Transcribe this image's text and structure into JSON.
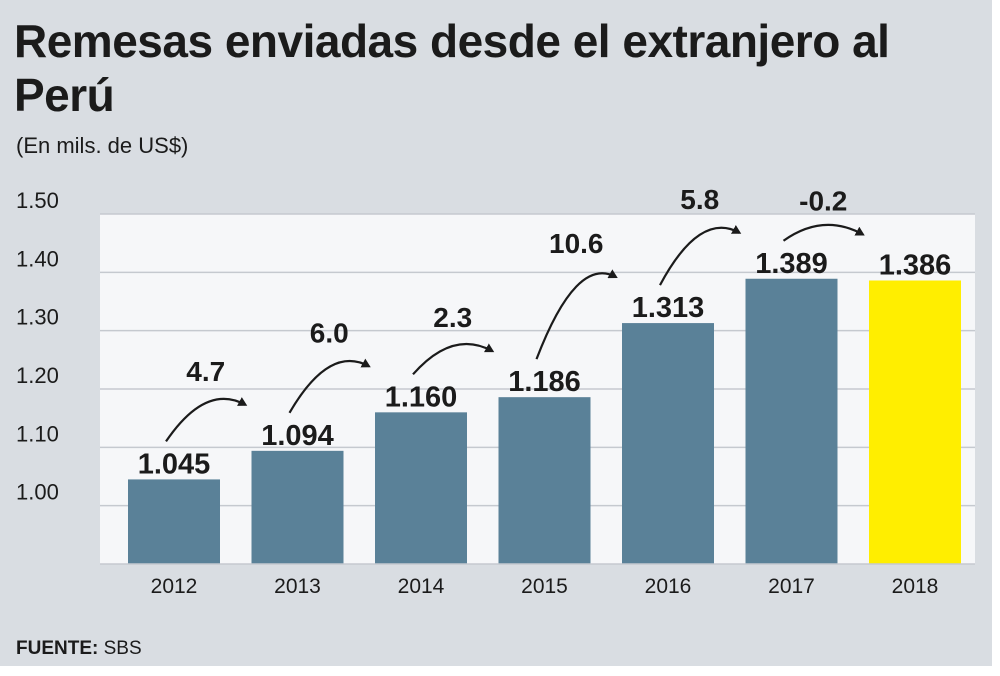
{
  "header": {
    "title": "Remesas enviadas desde el extranjero al Perú",
    "subtitle": "(En mils. de US$)"
  },
  "footer": {
    "source_label": "FUENTE:",
    "source_value": "SBS"
  },
  "colors": {
    "bar": "#5a8198",
    "highlight": "#ffee00",
    "plot_bg": "#f6f7f9",
    "panel_bg": "#d9dde2",
    "grid": "#c5c9cf"
  },
  "chart_data": {
    "type": "bar",
    "title": "Remesas enviadas desde el extranjero al Perú",
    "subtitle": "(En mils. de US$)",
    "categories": [
      "2012",
      "2013",
      "2014",
      "2015",
      "2016",
      "2017",
      "2018"
    ],
    "values": [
      1.045,
      1.094,
      1.16,
      1.186,
      1.313,
      1.389,
      1.386
    ],
    "value_labels": [
      "1.045",
      "1.094",
      "1.160",
      "1.186",
      "1.313",
      "1.389",
      "1.386"
    ],
    "growth_labels": [
      "4.7",
      "6.0",
      "2.3",
      "10.6",
      "5.8",
      "-0.2"
    ],
    "highlight_category": "2018",
    "yticks": [
      "1.00",
      "1.10",
      "1.20",
      "1.30",
      "1.40",
      "1.50"
    ],
    "ylim": [
      0.9,
      1.5
    ],
    "grid": true,
    "xlabel": "",
    "ylabel": ""
  }
}
